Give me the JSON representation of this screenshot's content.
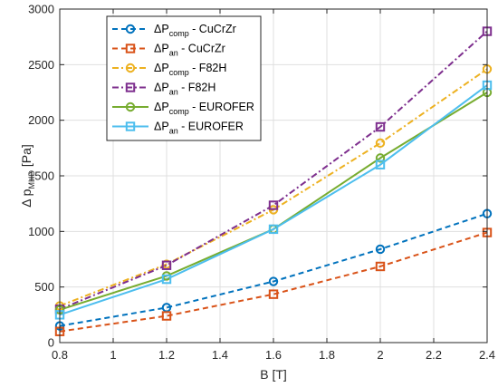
{
  "chart_data": {
    "type": "line",
    "xlabel": "B [T]",
    "ylabel_main": "Δ p",
    "ylabel_sub": "MHD",
    "ylabel_unit": " [Pa]",
    "xlim": [
      0.8,
      2.4
    ],
    "ylim": [
      0,
      3000
    ],
    "grid": true,
    "legend_position": "top-left",
    "x": [
      0.8,
      1.2,
      1.6,
      2.0,
      2.4
    ],
    "x_ticks": [
      "0.8",
      "1",
      "1.2",
      "1.4",
      "1.6",
      "1.8",
      "2",
      "2.2",
      "2.4"
    ],
    "y_ticks": [
      "0",
      "500",
      "1000",
      "1500",
      "2000",
      "2500",
      "3000"
    ],
    "series": [
      {
        "name_main": "ΔP",
        "name_sub": "comp",
        "name_rest": " - CuCrZr",
        "color": "#0072BD",
        "dash": "6,4",
        "marker": "circle",
        "values": [
          150,
          315,
          550,
          840,
          1160
        ]
      },
      {
        "name_main": "ΔP",
        "name_sub": "an",
        "name_rest": " - CuCrZr",
        "color": "#D95319",
        "dash": "6,4",
        "marker": "square",
        "values": [
          100,
          240,
          435,
          685,
          990
        ]
      },
      {
        "name_main": "ΔP",
        "name_sub": "comp",
        "name_rest": " - F82H",
        "color": "#EDB120",
        "dash": "7,3,2,3",
        "marker": "circle",
        "values": [
          330,
          705,
          1195,
          1795,
          2460
        ]
      },
      {
        "name_main": "ΔP",
        "name_sub": "an",
        "name_rest": " - F82H",
        "color": "#7E2F8E",
        "dash": "7,3,2,3",
        "marker": "square",
        "values": [
          300,
          695,
          1235,
          1940,
          2800
        ]
      },
      {
        "name_main": "ΔP",
        "name_sub": "comp",
        "name_rest": " - EUROFER",
        "color": "#77AC30",
        "dash": "",
        "marker": "circle",
        "values": [
          295,
          600,
          1020,
          1660,
          2250
        ]
      },
      {
        "name_main": "ΔP",
        "name_sub": "an",
        "name_rest": " - EUROFER",
        "color": "#4DBEEE",
        "dash": "",
        "marker": "square",
        "values": [
          250,
          570,
          1020,
          1600,
          2315
        ]
      }
    ]
  }
}
